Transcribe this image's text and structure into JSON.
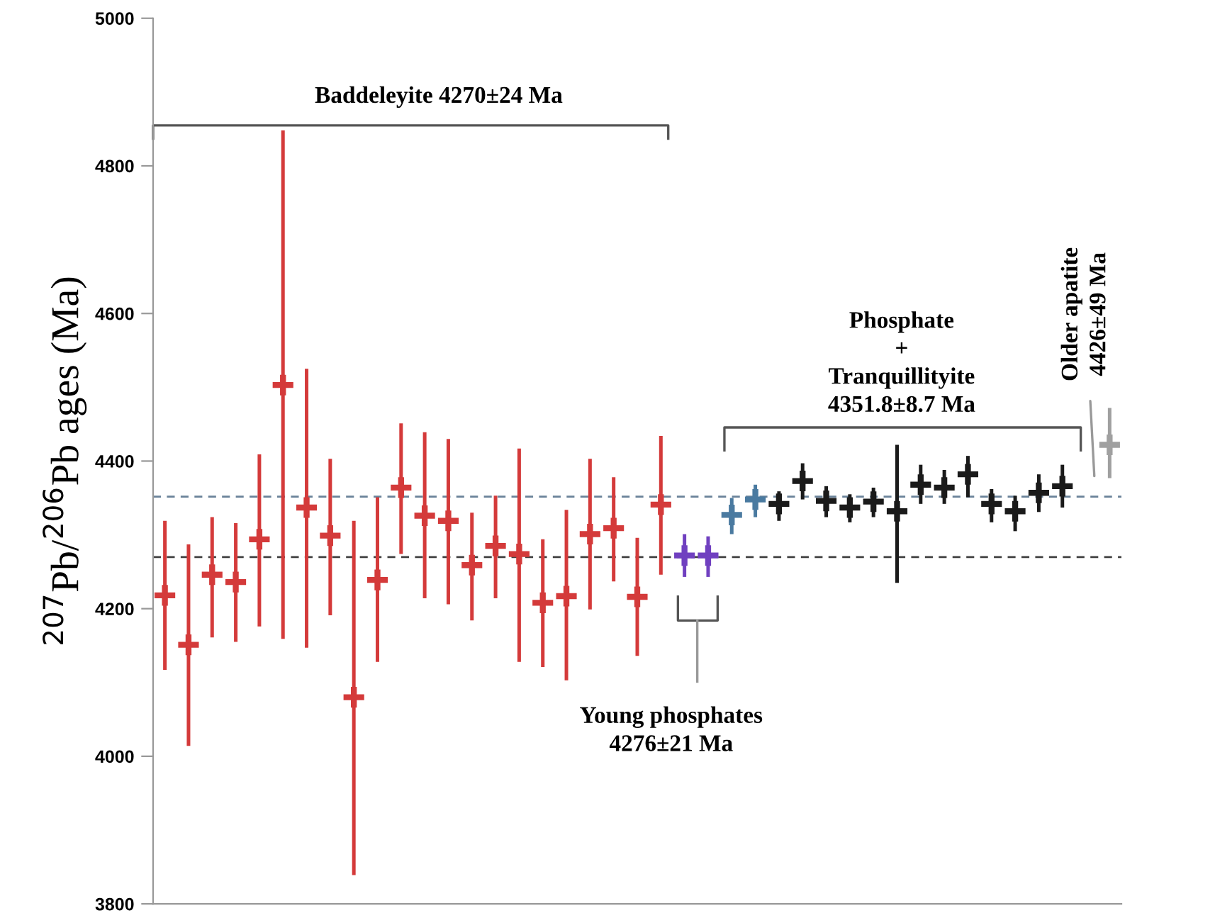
{
  "chart_data": {
    "type": "scatter",
    "ylabel": "$^{207}$Pb/$^{206}$Pb ages (Ma)",
    "categories": [
      null,
      null,
      null,
      null,
      null,
      null,
      null,
      null,
      null,
      null,
      null,
      null,
      null,
      null,
      null,
      null,
      null,
      null,
      null,
      null,
      null,
      null,
      null,
      null,
      null,
      null,
      null,
      null,
      null,
      null,
      null,
      null,
      null,
      null,
      null,
      null,
      null,
      null,
      null,
      null,
      null
    ],
    "series": [
      {
        "color": "#d43a3a",
        "values": [
          4218,
          4151,
          4246,
          4236,
          4294,
          4503,
          4337,
          4299,
          4080,
          4239,
          4364,
          4326,
          4319,
          4259,
          4285,
          4274,
          4208,
          4217,
          4301,
          4309,
          4216,
          4341,
          null,
          null,
          null,
          null,
          null,
          null,
          null,
          null,
          null,
          null,
          null,
          null,
          null,
          null,
          null,
          null,
          null,
          null,
          null
        ],
        "errors": [
          [
            4117,
            4319
          ],
          [
            4014,
            4287
          ],
          [
            4161,
            4324
          ],
          [
            4155,
            4316
          ],
          [
            4176,
            4409
          ],
          [
            4159,
            4848
          ],
          [
            4147,
            4525
          ],
          [
            4191,
            4403
          ],
          [
            3839,
            4319
          ],
          [
            4128,
            4351
          ],
          [
            4274,
            4451
          ],
          [
            4214,
            4439
          ],
          [
            4206,
            4430
          ],
          [
            4184,
            4330
          ],
          [
            4214,
            4353
          ],
          [
            4128,
            4417
          ],
          [
            4121,
            4294
          ],
          [
            4103,
            4334
          ],
          [
            4199,
            4403
          ],
          [
            4237,
            4378
          ],
          [
            4136,
            4296
          ],
          [
            4246,
            4434
          ],
          null,
          null,
          null,
          null,
          null,
          null,
          null,
          null,
          null,
          null,
          null,
          null,
          null,
          null,
          null,
          null,
          null,
          null,
          null
        ]
      },
      {
        "color": "#7040c0",
        "values": [
          null,
          null,
          null,
          null,
          null,
          null,
          null,
          null,
          null,
          null,
          null,
          null,
          null,
          null,
          null,
          null,
          null,
          null,
          null,
          null,
          null,
          null,
          4272,
          4272,
          null,
          null,
          null,
          null,
          null,
          null,
          null,
          null,
          null,
          null,
          null,
          null,
          null,
          null,
          null,
          null,
          null
        ],
        "errors": [
          null,
          null,
          null,
          null,
          null,
          null,
          null,
          null,
          null,
          null,
          null,
          null,
          null,
          null,
          null,
          null,
          null,
          null,
          null,
          null,
          null,
          null,
          [
            4243,
            4301
          ],
          [
            4243,
            4298
          ],
          null,
          null,
          null,
          null,
          null,
          null,
          null,
          null,
          null,
          null,
          null,
          null,
          null,
          null,
          null,
          null,
          null
        ]
      },
      {
        "color": "#4a7aa0",
        "values": [
          null,
          null,
          null,
          null,
          null,
          null,
          null,
          null,
          null,
          null,
          null,
          null,
          null,
          null,
          null,
          null,
          null,
          null,
          null,
          null,
          null,
          null,
          null,
          null,
          4327,
          4348,
          null,
          null,
          null,
          null,
          null,
          null,
          null,
          null,
          null,
          null,
          null,
          null,
          null,
          null,
          null
        ],
        "errors": [
          null,
          null,
          null,
          null,
          null,
          null,
          null,
          null,
          null,
          null,
          null,
          null,
          null,
          null,
          null,
          null,
          null,
          null,
          null,
          null,
          null,
          null,
          null,
          null,
          [
            4301,
            4350
          ],
          [
            4324,
            4368
          ],
          null,
          null,
          null,
          null,
          null,
          null,
          null,
          null,
          null,
          null,
          null,
          null,
          null,
          null,
          null
        ]
      },
      {
        "color": "#1a1a1a",
        "values": [
          null,
          null,
          null,
          null,
          null,
          null,
          null,
          null,
          null,
          null,
          null,
          null,
          null,
          null,
          null,
          null,
          null,
          null,
          null,
          null,
          null,
          null,
          null,
          null,
          null,
          null,
          4342,
          4373,
          4346,
          4337,
          4345,
          4332,
          4368,
          4364,
          4382,
          4342,
          4332,
          4357,
          4366,
          null,
          null
        ],
        "errors": [
          null,
          null,
          null,
          null,
          null,
          null,
          null,
          null,
          null,
          null,
          null,
          null,
          null,
          null,
          null,
          null,
          null,
          null,
          null,
          null,
          null,
          null,
          null,
          null,
          null,
          null,
          [
            4319,
            4359
          ],
          [
            4348,
            4397
          ],
          [
            4324,
            4366
          ],
          [
            4317,
            4355
          ],
          [
            4324,
            4364
          ],
          [
            4235,
            4422
          ],
          [
            4342,
            4395
          ],
          [
            4342,
            4388
          ],
          [
            4351,
            4407
          ],
          [
            4317,
            4362
          ],
          [
            4305,
            4353
          ],
          [
            4331,
            4382
          ],
          [
            4337,
            4395
          ],
          null,
          null
        ]
      },
      {
        "color": "#a0a0a0",
        "values": [
          null,
          null,
          null,
          null,
          null,
          null,
          null,
          null,
          null,
          null,
          null,
          null,
          null,
          null,
          null,
          null,
          null,
          null,
          null,
          null,
          null,
          null,
          null,
          null,
          null,
          null,
          null,
          null,
          null,
          null,
          null,
          null,
          null,
          null,
          null,
          null,
          null,
          null,
          null,
          null,
          4422
        ],
        "errors": [
          null,
          null,
          null,
          null,
          null,
          null,
          null,
          null,
          null,
          null,
          null,
          null,
          null,
          null,
          null,
          null,
          null,
          null,
          null,
          null,
          null,
          null,
          null,
          null,
          null,
          null,
          null,
          null,
          null,
          null,
          null,
          null,
          null,
          null,
          null,
          null,
          null,
          null,
          null,
          null,
          [
            4377,
            4472
          ]
        ]
      }
    ],
    "ylim": [
      3800,
      5000
    ],
    "yticks": [
      3800,
      4000,
      4200,
      4400,
      4600,
      4800,
      5000
    ],
    "tick_labels": "y",
    "marker": "cross",
    "grid": false,
    "legend": false,
    "ref_lines": [
      {
        "axis": "y",
        "value": 4351.8,
        "color": "#6a8299",
        "line_style": "dashed"
      },
      {
        "axis": "y",
        "value": 4270,
        "color": "#404040",
        "line_style": "dashed"
      }
    ],
    "annotations": [
      "Baddeleyite 4270±24 Ma",
      "Young phosphates\n4276±21 Ma",
      "Phosphate\n+\nTranquillityite\n4351.8±8.7 Ma",
      "Older apatite\n4426±49 Ma"
    ]
  }
}
